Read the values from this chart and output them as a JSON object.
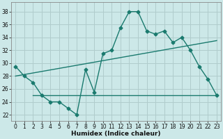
{
  "xlabel": "Humidex (Indice chaleur)",
  "bg_color": "#cce8e8",
  "grid_color": "#b0cccc",
  "line_color": "#1a7a6e",
  "xlim": [
    -0.5,
    23.5
  ],
  "ylim": [
    21.0,
    39.5
  ],
  "xticks": [
    0,
    1,
    2,
    3,
    4,
    5,
    6,
    7,
    8,
    9,
    10,
    11,
    12,
    13,
    14,
    15,
    16,
    17,
    18,
    19,
    20,
    21,
    22,
    23
  ],
  "yticks": [
    22,
    24,
    26,
    28,
    30,
    32,
    34,
    36,
    38
  ],
  "line1_x": [
    0,
    1,
    2,
    3,
    4,
    5,
    6,
    7,
    8,
    9,
    10,
    11,
    12,
    13,
    14,
    15,
    16,
    17,
    18,
    19,
    20,
    21,
    22,
    23
  ],
  "line1_y": [
    29.5,
    28.0,
    27.0,
    25.0,
    24.0,
    24.0,
    23.0,
    22.0,
    29.0,
    25.5,
    31.5,
    32.0,
    35.5,
    38.0,
    38.0,
    35.0,
    34.5,
    35.0,
    33.2,
    34.0,
    32.0,
    29.5,
    27.5,
    25.0
  ],
  "line2_x": [
    0,
    23
  ],
  "line2_y": [
    28.0,
    33.5
  ],
  "line3_x": [
    2,
    23
  ],
  "line3_y": [
    25.0,
    25.0
  ],
  "marker": "D",
  "markersize": 2.5,
  "linewidth": 1.0
}
